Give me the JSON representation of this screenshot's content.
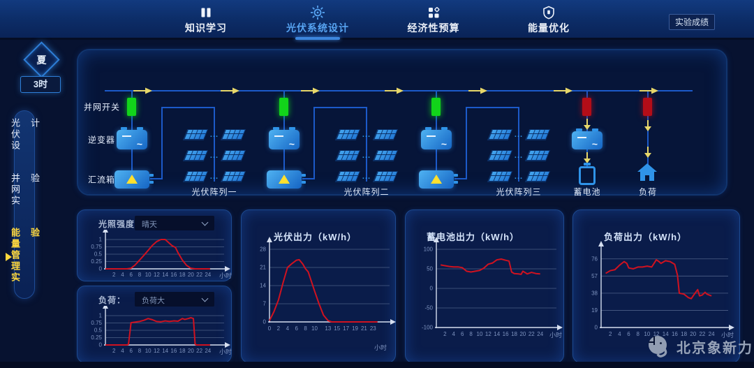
{
  "colors": {
    "accent": "#3d86dd",
    "active_tab": "#57a4f2",
    "chart_line": "#d01220",
    "grid": "#4d5f87",
    "axis": "#d6dff0",
    "tick": "#7e93bf",
    "switch_on": "#12d41a",
    "switch_off": "#b30d18",
    "wire": "#1c5ac9",
    "device_blue": "#2f93e8",
    "flow_arrow": "#e7d76a",
    "sidebar_active": "#ffd83d"
  },
  "nav": {
    "tabs": [
      {
        "label": "知识学习",
        "icon": "book-icon",
        "active": false
      },
      {
        "label": "光伏系统设计",
        "icon": "sun-icon",
        "active": true
      },
      {
        "label": "经济性预算",
        "icon": "grid-icon",
        "active": false
      },
      {
        "label": "能量优化",
        "icon": "shield-icon",
        "active": false
      }
    ],
    "score_button": "实验成绩"
  },
  "side": {
    "season": "夏",
    "time": "3时",
    "menu": [
      {
        "label": "光伏设计",
        "active": false
      },
      {
        "label": "并网实验",
        "active": false
      },
      {
        "label": "能量管理实验",
        "active": true
      }
    ]
  },
  "diagram": {
    "switch_label": "并网开关",
    "inverter_label": "逆变器",
    "combiner_label": "汇流箱",
    "arrays": [
      {
        "label": "光伏阵列一",
        "switch": "on"
      },
      {
        "label": "光伏阵列二",
        "switch": "on"
      },
      {
        "label": "光伏阵列三",
        "switch": "on"
      }
    ],
    "battery_label": "蓄电池",
    "battery_switch": "off",
    "load_label": "负荷",
    "load_switch": "off"
  },
  "chart_data": [
    {
      "id": "irradiance",
      "type": "line",
      "panel_label": "光照强度：",
      "dropdown_value": "晴天",
      "xlabel": "小时",
      "xticks": [
        2,
        4,
        6,
        8,
        10,
        12,
        14,
        16,
        18,
        20,
        22,
        24
      ],
      "yticks": [
        0,
        0.25,
        0.5,
        0.75,
        1
      ],
      "xlim": [
        0,
        25.5
      ],
      "ylim": [
        0,
        1
      ],
      "points": [
        [
          0,
          0
        ],
        [
          5,
          0
        ],
        [
          6,
          0.02
        ],
        [
          7,
          0.14
        ],
        [
          8,
          0.3
        ],
        [
          9,
          0.46
        ],
        [
          10,
          0.63
        ],
        [
          11,
          0.8
        ],
        [
          12,
          0.93
        ],
        [
          13,
          1
        ],
        [
          14,
          1
        ],
        [
          15,
          0.87
        ],
        [
          15.6,
          0.79
        ],
        [
          16.4,
          0.73
        ],
        [
          17,
          0.55
        ],
        [
          18,
          0.3
        ],
        [
          19,
          0.12
        ],
        [
          20,
          0.02
        ],
        [
          21,
          0
        ],
        [
          24.5,
          0
        ]
      ]
    },
    {
      "id": "load-profile",
      "type": "line",
      "panel_label": "负荷：",
      "dropdown_value": "负荷大",
      "xlabel": "小时",
      "xticks": [
        2,
        4,
        6,
        8,
        10,
        12,
        14,
        16,
        18,
        20,
        22,
        24
      ],
      "yticks": [
        0,
        0.25,
        0.5,
        0.75,
        1
      ],
      "xlim": [
        0,
        25.5
      ],
      "ylim": [
        0,
        1
      ],
      "points": [
        [
          0,
          0
        ],
        [
          5,
          0
        ],
        [
          5.4,
          0.02
        ],
        [
          6,
          0.76
        ],
        [
          7,
          0.78
        ],
        [
          8,
          0.8
        ],
        [
          9,
          0.84
        ],
        [
          10,
          0.9
        ],
        [
          11,
          0.86
        ],
        [
          12,
          0.8
        ],
        [
          13,
          0.79
        ],
        [
          14,
          0.82
        ],
        [
          15,
          0.8
        ],
        [
          16,
          0.82
        ],
        [
          17,
          0.81
        ],
        [
          18,
          0.9
        ],
        [
          18.6,
          0.87
        ],
        [
          19.4,
          0.9
        ],
        [
          20,
          0.93
        ],
        [
          20.6,
          0.9
        ],
        [
          21,
          0.03
        ],
        [
          21.3,
          0
        ],
        [
          24.5,
          0
        ]
      ]
    },
    {
      "id": "pv-output",
      "type": "line",
      "title": "光伏出力（kW/h）",
      "xlabel": "小时",
      "xticks": [
        0,
        2,
        4,
        6,
        8,
        10,
        13,
        15,
        17,
        19,
        21,
        23
      ],
      "yticks": [
        0,
        7,
        14,
        21,
        28
      ],
      "xlim": [
        0,
        24.5
      ],
      "ylim": [
        0,
        28
      ],
      "points": [
        [
          0,
          0.5
        ],
        [
          1,
          4
        ],
        [
          2,
          8.5
        ],
        [
          3,
          15
        ],
        [
          4,
          21
        ],
        [
          5,
          22.5
        ],
        [
          6,
          23.8
        ],
        [
          6.6,
          24
        ],
        [
          7.4,
          22.3
        ],
        [
          8,
          20.5
        ],
        [
          8.6,
          19.3
        ],
        [
          10,
          12
        ],
        [
          11,
          7
        ],
        [
          12,
          2.6
        ],
        [
          13,
          0.5
        ],
        [
          13.8,
          0
        ],
        [
          24,
          0
        ]
      ]
    },
    {
      "id": "battery-output",
      "type": "line",
      "title": "蓄电池出力（kW/h）",
      "xlabel": "小时",
      "xticks": [
        2,
        4,
        6,
        8,
        10,
        12,
        14,
        16,
        18,
        20,
        22,
        24
      ],
      "yticks": [
        -100,
        -50,
        0,
        50,
        100
      ],
      "xlim": [
        0,
        25.5
      ],
      "ylim": [
        -100,
        100
      ],
      "points": [
        [
          1,
          60
        ],
        [
          2,
          58
        ],
        [
          3,
          56
        ],
        [
          4,
          55
        ],
        [
          5,
          55
        ],
        [
          6,
          53
        ],
        [
          7,
          44
        ],
        [
          8,
          42
        ],
        [
          9,
          44
        ],
        [
          10,
          46
        ],
        [
          11,
          52
        ],
        [
          12,
          62
        ],
        [
          13,
          65
        ],
        [
          14,
          73
        ],
        [
          15,
          75
        ],
        [
          16,
          72
        ],
        [
          16.8,
          70
        ],
        [
          17.4,
          42
        ],
        [
          18,
          38
        ],
        [
          19,
          37
        ],
        [
          19.6,
          36
        ],
        [
          20,
          44
        ],
        [
          20.6,
          40
        ],
        [
          21,
          37
        ],
        [
          22,
          41
        ],
        [
          23,
          38
        ],
        [
          24,
          37
        ]
      ]
    },
    {
      "id": "load-output",
      "type": "line",
      "title": "负荷出力（kW/h）",
      "xlabel": "小时",
      "xticks": [
        2,
        4,
        6,
        8,
        10,
        12,
        14,
        16,
        18,
        20,
        22,
        24
      ],
      "yticks": [
        0,
        19,
        38,
        57,
        76
      ],
      "xlim": [
        0,
        25.5
      ],
      "ylim": [
        0,
        82
      ],
      "points": [
        [
          1,
          60
        ],
        [
          2,
          63
        ],
        [
          3,
          64
        ],
        [
          4,
          69
        ],
        [
          5,
          73
        ],
        [
          5.6,
          71
        ],
        [
          6,
          66
        ],
        [
          7,
          65
        ],
        [
          8,
          67
        ],
        [
          9,
          67
        ],
        [
          10,
          68
        ],
        [
          11,
          67
        ],
        [
          12,
          75
        ],
        [
          12.6,
          73
        ],
        [
          13,
          71
        ],
        [
          14,
          74
        ],
        [
          15,
          73
        ],
        [
          16,
          70
        ],
        [
          16.6,
          58
        ],
        [
          17,
          38
        ],
        [
          18,
          37
        ],
        [
          19,
          33
        ],
        [
          19.6,
          32
        ],
        [
          20,
          35
        ],
        [
          21,
          42
        ],
        [
          21.4,
          35
        ],
        [
          22,
          36
        ],
        [
          22.6,
          39
        ],
        [
          23,
          37
        ],
        [
          24,
          35
        ]
      ]
    }
  ],
  "footer": {
    "brand": "北京象新力"
  }
}
